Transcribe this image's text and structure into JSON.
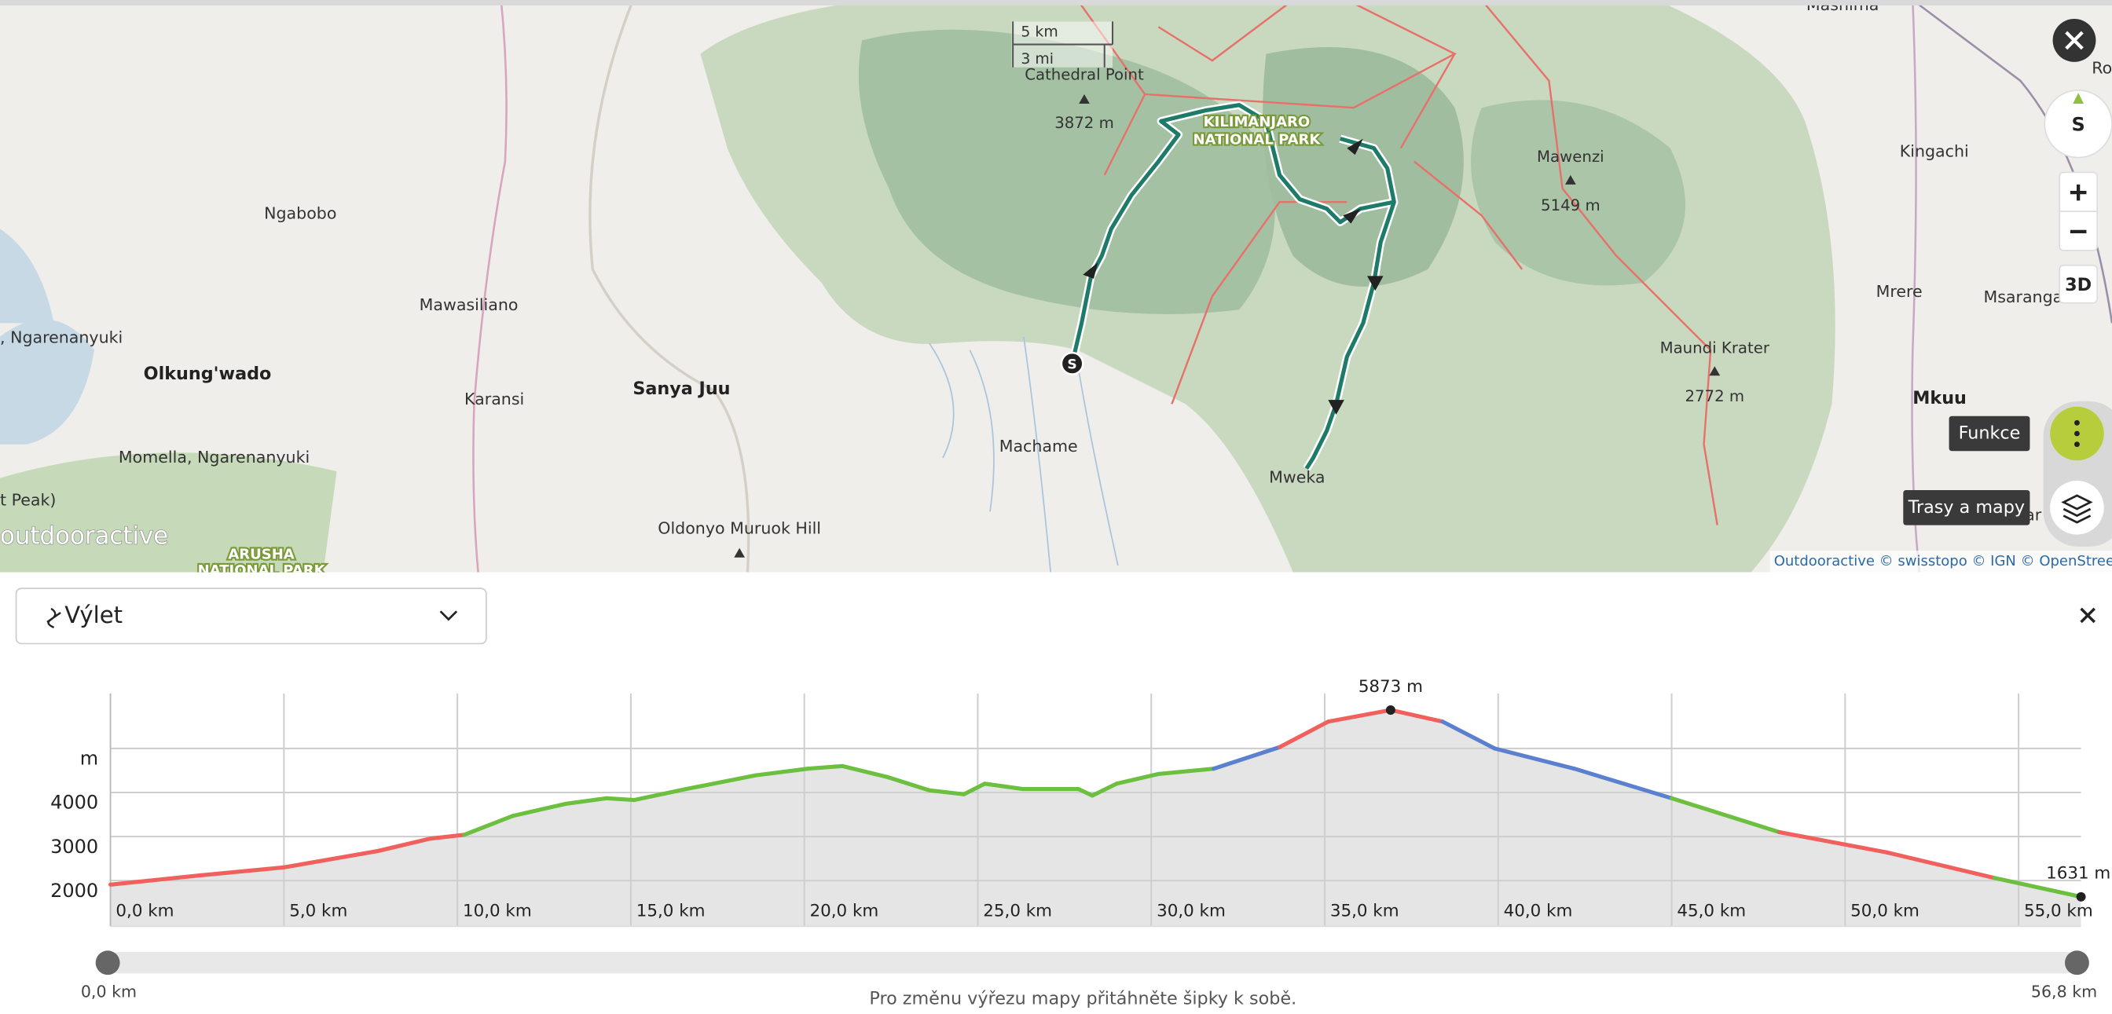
{
  "map": {
    "scale": {
      "km": "5 km",
      "mi": "3 mi"
    },
    "places": [
      "Mashima",
      "Kingachi",
      "Ngabobo",
      "Mawasiliano",
      ", Ngarenanyuki",
      "Olkung'wado",
      "Karansi",
      "Sanya Juu",
      "Machame",
      "Momella, Ngarenanyuki",
      "t Peak)",
      "Oldonyo Muruok Hill",
      "Mweka",
      "Mrere",
      "Msaranga",
      "Mkuu",
      "Mar",
      "Ro"
    ],
    "peaks": [
      {
        "name": "Cathedral Point",
        "elevation": "3872 m"
      },
      {
        "name": "Mawenzi",
        "elevation": "5149 m"
      },
      {
        "name": "Maundi Krater",
        "elevation": "2772 m"
      }
    ],
    "park_labels": [
      "KILIMANJARO",
      "NATIONAL PARK",
      "ARUSHA",
      "NATIONAL PARK"
    ],
    "logo": "outdooractive",
    "attribution": "Outdooractive © swisstopo © IGN © OpenStreetMap",
    "start_marker": "S"
  },
  "controls": {
    "compass": "S",
    "three_d": "3D",
    "functions": "Funkce",
    "routes_maps": "Trasy a mapy"
  },
  "panel": {
    "activity": "Výlet"
  },
  "chart_data": {
    "type": "area",
    "x": [
      0,
      2.6,
      5.0,
      7.7,
      9.2,
      10.2,
      11.6,
      13.1,
      14.3,
      15.1,
      16.6,
      18.6,
      20.1,
      21.1,
      22.4,
      23.6,
      24.6,
      25.2,
      26.3,
      27.9,
      28.3,
      29.0,
      30.2,
      31.8,
      33.7,
      35.1,
      36.9,
      38.4,
      39.9,
      42.2,
      45.0,
      48.1,
      51.2,
      54.3,
      56.8
    ],
    "values": [
      1908,
      2120,
      2300,
      2670,
      2950,
      3040,
      3470,
      3740,
      3870,
      3830,
      4080,
      4390,
      4540,
      4600,
      4350,
      4050,
      3960,
      4200,
      4080,
      4080,
      3930,
      4200,
      4420,
      4540,
      5030,
      5610,
      5873,
      5610,
      5000,
      4540,
      3870,
      3100,
      2640,
      2060,
      1631
    ],
    "segment_colors": [
      "#f0605d",
      "#f0605d",
      "#f0605d",
      "#f0605d",
      "#f0605d",
      "#6cbf3f",
      "#6cbf3f",
      "#6cbf3f",
      "#6cbf3f",
      "#6cbf3f",
      "#6cbf3f",
      "#6cbf3f",
      "#6cbf3f",
      "#6cbf3f",
      "#6cbf3f",
      "#6cbf3f",
      "#6cbf3f",
      "#6cbf3f",
      "#6cbf3f",
      "#6cbf3f",
      "#6cbf3f",
      "#6cbf3f",
      "#6cbf3f",
      "#5b80d0",
      "#f0605d",
      "#f0605d",
      "#f0605d",
      "#5b80d0",
      "#5b80d0",
      "#5b80d0",
      "#6cbf3f",
      "#f0605d",
      "#f0605d",
      "#6cbf3f"
    ],
    "fill": "#e5e5e5",
    "annotations": [
      {
        "label": "5873 m",
        "x": 36.9,
        "value": 5873
      },
      {
        "label": "1631 m",
        "x": 56.8,
        "value": 1631
      }
    ],
    "xlim": [
      0,
      56.8
    ],
    "ylim": [
      960,
      6250
    ],
    "xticks": [
      {
        "value": 0,
        "label": "0,0 km"
      },
      {
        "value": 5,
        "label": "5,0 km"
      },
      {
        "value": 10,
        "label": "10,0 km"
      },
      {
        "value": 15,
        "label": "15,0 km"
      },
      {
        "value": 20,
        "label": "20,0 km"
      },
      {
        "value": 25,
        "label": "25,0 km"
      },
      {
        "value": 30,
        "label": "30,0 km"
      },
      {
        "value": 35,
        "label": "35,0 km"
      },
      {
        "value": 40,
        "label": "40,0 km"
      },
      {
        "value": 45,
        "label": "45,0 km"
      },
      {
        "value": 50,
        "label": "50,0 km"
      },
      {
        "value": 55,
        "label": "55,0 km"
      }
    ],
    "yticks": [
      2000,
      3000,
      4000,
      {
        "value": 5000,
        "label": "m"
      }
    ],
    "grid": true
  },
  "slider": {
    "start": "0,0 km",
    "end": "56,8 km",
    "hint": "Pro změnu výřezu mapy přitáhněte šipky k sobě."
  }
}
